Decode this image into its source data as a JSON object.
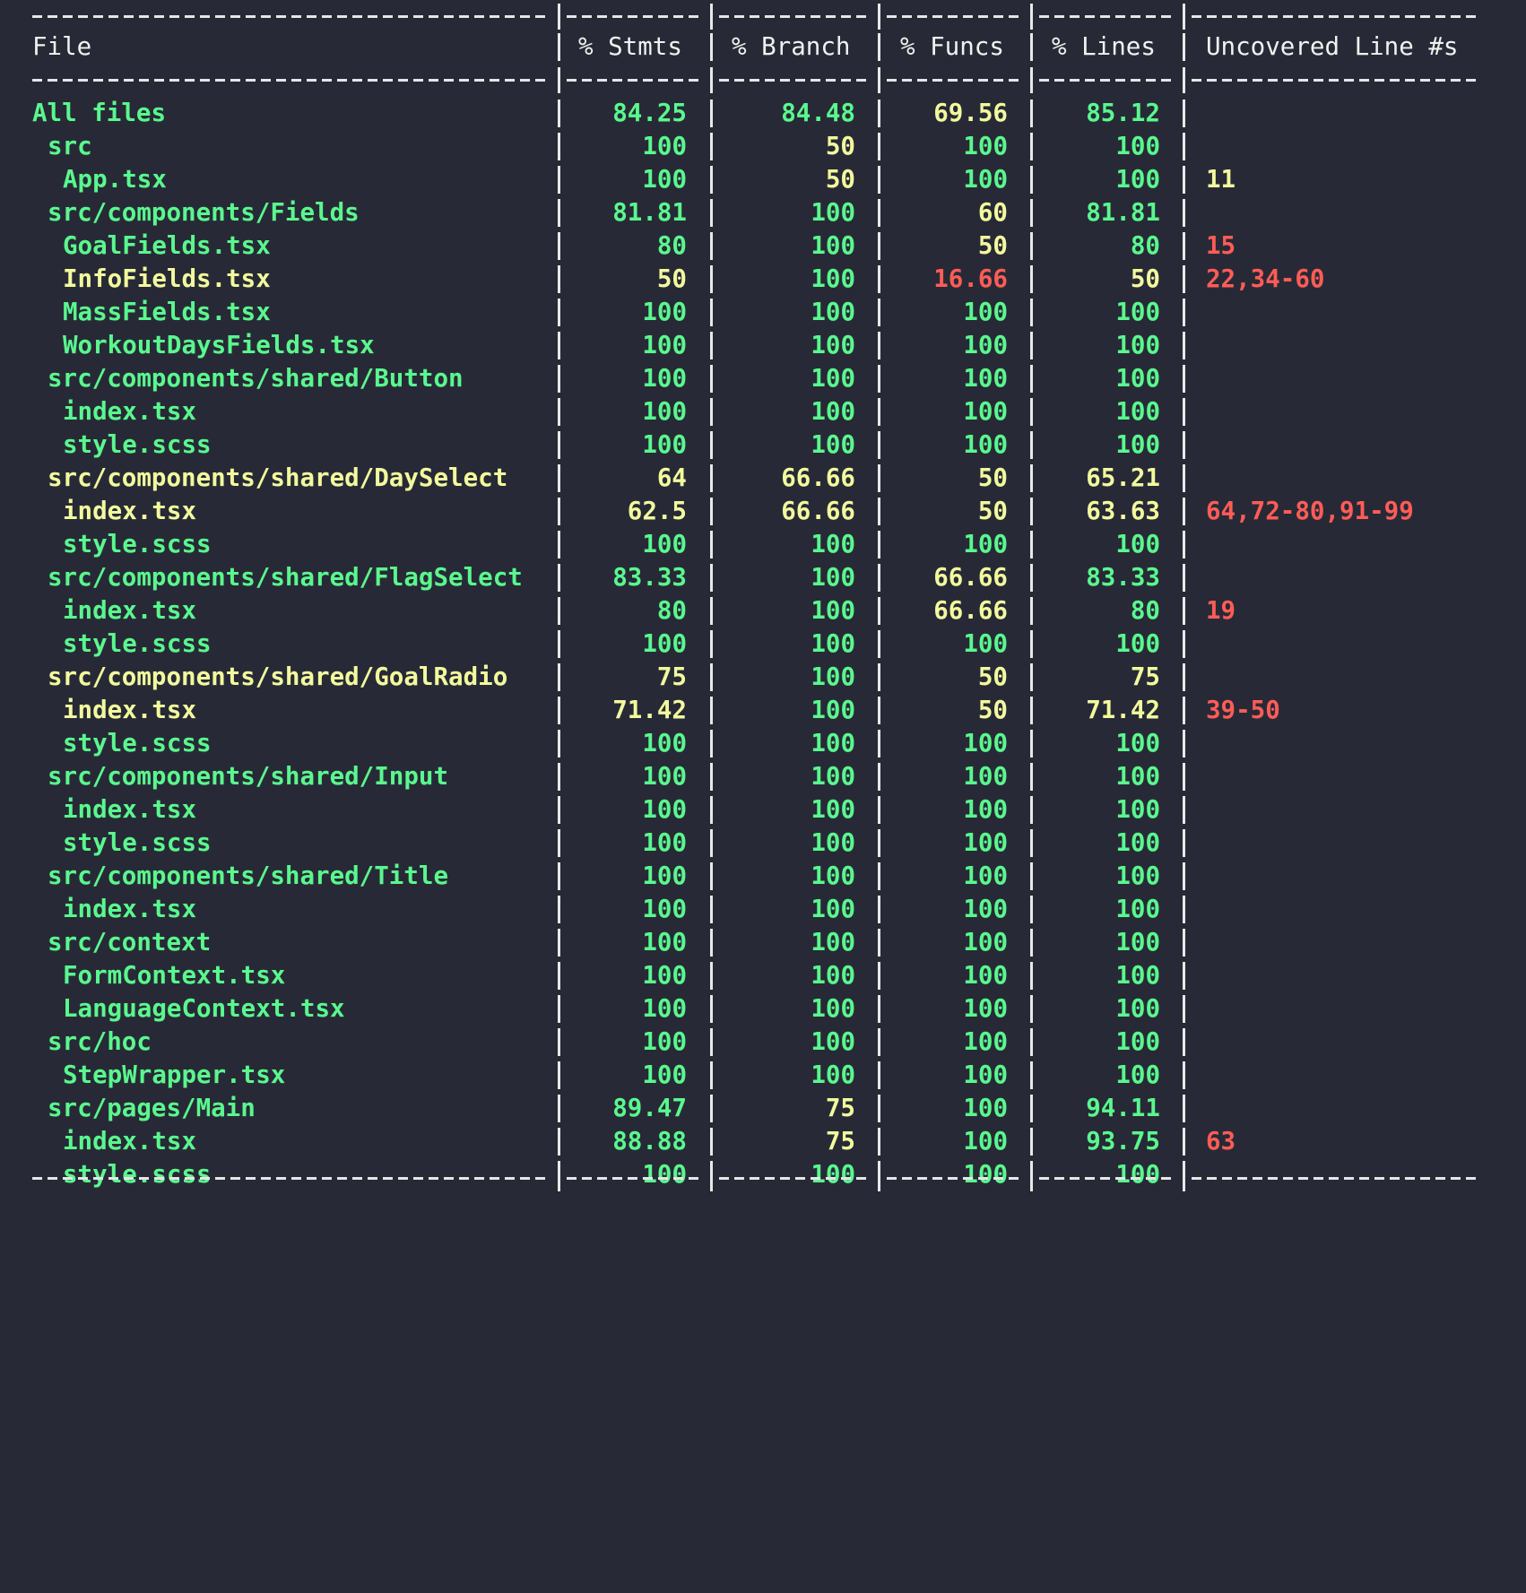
{
  "headers": {
    "file": "File",
    "stmts": "% Stmts",
    "branch": "% Branch",
    "funcs": "% Funcs",
    "lines": "% Lines",
    "uncovered": "Uncovered Line #s"
  },
  "colors": {
    "background": "#272a36",
    "high": "#5af78e",
    "medium": "#f3f99d",
    "low": "#ff5c57",
    "text": "#f1f1f0"
  },
  "rows": [
    {
      "file": "All files",
      "indent": 0,
      "file_color": "green",
      "stmts": "84.25",
      "stmts_color": "green",
      "branch": "84.48",
      "branch_color": "green",
      "funcs": "69.56",
      "funcs_color": "yellow",
      "lines": "85.12",
      "lines_color": "green",
      "uncovered": "",
      "uncovered_color": "red"
    },
    {
      "file": "src",
      "indent": 1,
      "file_color": "green",
      "stmts": "100",
      "stmts_color": "green",
      "branch": "50",
      "branch_color": "yellow",
      "funcs": "100",
      "funcs_color": "green",
      "lines": "100",
      "lines_color": "green",
      "uncovered": "",
      "uncovered_color": "red"
    },
    {
      "file": "App.tsx",
      "indent": 2,
      "file_color": "green",
      "stmts": "100",
      "stmts_color": "green",
      "branch": "50",
      "branch_color": "yellow",
      "funcs": "100",
      "funcs_color": "green",
      "lines": "100",
      "lines_color": "green",
      "uncovered": "11",
      "uncovered_color": "yellow"
    },
    {
      "file": "src/components/Fields",
      "indent": 1,
      "file_color": "green",
      "stmts": "81.81",
      "stmts_color": "green",
      "branch": "100",
      "branch_color": "green",
      "funcs": "60",
      "funcs_color": "yellow",
      "lines": "81.81",
      "lines_color": "green",
      "uncovered": "",
      "uncovered_color": "red"
    },
    {
      "file": "GoalFields.tsx",
      "indent": 2,
      "file_color": "green",
      "stmts": "80",
      "stmts_color": "green",
      "branch": "100",
      "branch_color": "green",
      "funcs": "50",
      "funcs_color": "yellow",
      "lines": "80",
      "lines_color": "green",
      "uncovered": "15",
      "uncovered_color": "red"
    },
    {
      "file": "InfoFields.tsx",
      "indent": 2,
      "file_color": "yellow",
      "stmts": "50",
      "stmts_color": "yellow",
      "branch": "100",
      "branch_color": "green",
      "funcs": "16.66",
      "funcs_color": "red",
      "lines": "50",
      "lines_color": "yellow",
      "uncovered": "22,34-60",
      "uncovered_color": "red"
    },
    {
      "file": "MassFields.tsx",
      "indent": 2,
      "file_color": "green",
      "stmts": "100",
      "stmts_color": "green",
      "branch": "100",
      "branch_color": "green",
      "funcs": "100",
      "funcs_color": "green",
      "lines": "100",
      "lines_color": "green",
      "uncovered": "",
      "uncovered_color": "red"
    },
    {
      "file": "WorkoutDaysFields.tsx",
      "indent": 2,
      "file_color": "green",
      "stmts": "100",
      "stmts_color": "green",
      "branch": "100",
      "branch_color": "green",
      "funcs": "100",
      "funcs_color": "green",
      "lines": "100",
      "lines_color": "green",
      "uncovered": "",
      "uncovered_color": "red"
    },
    {
      "file": "src/components/shared/Button",
      "indent": 1,
      "file_color": "green",
      "stmts": "100",
      "stmts_color": "green",
      "branch": "100",
      "branch_color": "green",
      "funcs": "100",
      "funcs_color": "green",
      "lines": "100",
      "lines_color": "green",
      "uncovered": "",
      "uncovered_color": "red"
    },
    {
      "file": "index.tsx",
      "indent": 2,
      "file_color": "green",
      "stmts": "100",
      "stmts_color": "green",
      "branch": "100",
      "branch_color": "green",
      "funcs": "100",
      "funcs_color": "green",
      "lines": "100",
      "lines_color": "green",
      "uncovered": "",
      "uncovered_color": "red"
    },
    {
      "file": "style.scss",
      "indent": 2,
      "file_color": "green",
      "stmts": "100",
      "stmts_color": "green",
      "branch": "100",
      "branch_color": "green",
      "funcs": "100",
      "funcs_color": "green",
      "lines": "100",
      "lines_color": "green",
      "uncovered": "",
      "uncovered_color": "red"
    },
    {
      "file": "src/components/shared/DaySelect",
      "indent": 1,
      "file_color": "yellow",
      "stmts": "64",
      "stmts_color": "yellow",
      "branch": "66.66",
      "branch_color": "yellow",
      "funcs": "50",
      "funcs_color": "yellow",
      "lines": "65.21",
      "lines_color": "yellow",
      "uncovered": "",
      "uncovered_color": "red"
    },
    {
      "file": "index.tsx",
      "indent": 2,
      "file_color": "yellow",
      "stmts": "62.5",
      "stmts_color": "yellow",
      "branch": "66.66",
      "branch_color": "yellow",
      "funcs": "50",
      "funcs_color": "yellow",
      "lines": "63.63",
      "lines_color": "yellow",
      "uncovered": "64,72-80,91-99",
      "uncovered_color": "red"
    },
    {
      "file": "style.scss",
      "indent": 2,
      "file_color": "green",
      "stmts": "100",
      "stmts_color": "green",
      "branch": "100",
      "branch_color": "green",
      "funcs": "100",
      "funcs_color": "green",
      "lines": "100",
      "lines_color": "green",
      "uncovered": "",
      "uncovered_color": "red"
    },
    {
      "file": "src/components/shared/FlagSelect",
      "indent": 1,
      "file_color": "green",
      "stmts": "83.33",
      "stmts_color": "green",
      "branch": "100",
      "branch_color": "green",
      "funcs": "66.66",
      "funcs_color": "yellow",
      "lines": "83.33",
      "lines_color": "green",
      "uncovered": "",
      "uncovered_color": "red"
    },
    {
      "file": "index.tsx",
      "indent": 2,
      "file_color": "green",
      "stmts": "80",
      "stmts_color": "green",
      "branch": "100",
      "branch_color": "green",
      "funcs": "66.66",
      "funcs_color": "yellow",
      "lines": "80",
      "lines_color": "green",
      "uncovered": "19",
      "uncovered_color": "red"
    },
    {
      "file": "style.scss",
      "indent": 2,
      "file_color": "green",
      "stmts": "100",
      "stmts_color": "green",
      "branch": "100",
      "branch_color": "green",
      "funcs": "100",
      "funcs_color": "green",
      "lines": "100",
      "lines_color": "green",
      "uncovered": "",
      "uncovered_color": "red"
    },
    {
      "file": "src/components/shared/GoalRadio",
      "indent": 1,
      "file_color": "yellow",
      "stmts": "75",
      "stmts_color": "yellow",
      "branch": "100",
      "branch_color": "green",
      "funcs": "50",
      "funcs_color": "yellow",
      "lines": "75",
      "lines_color": "yellow",
      "uncovered": "",
      "uncovered_color": "red"
    },
    {
      "file": "index.tsx",
      "indent": 2,
      "file_color": "yellow",
      "stmts": "71.42",
      "stmts_color": "yellow",
      "branch": "100",
      "branch_color": "green",
      "funcs": "50",
      "funcs_color": "yellow",
      "lines": "71.42",
      "lines_color": "yellow",
      "uncovered": "39-50",
      "uncovered_color": "red"
    },
    {
      "file": "style.scss",
      "indent": 2,
      "file_color": "green",
      "stmts": "100",
      "stmts_color": "green",
      "branch": "100",
      "branch_color": "green",
      "funcs": "100",
      "funcs_color": "green",
      "lines": "100",
      "lines_color": "green",
      "uncovered": "",
      "uncovered_color": "red"
    },
    {
      "file": "src/components/shared/Input",
      "indent": 1,
      "file_color": "green",
      "stmts": "100",
      "stmts_color": "green",
      "branch": "100",
      "branch_color": "green",
      "funcs": "100",
      "funcs_color": "green",
      "lines": "100",
      "lines_color": "green",
      "uncovered": "",
      "uncovered_color": "red"
    },
    {
      "file": "index.tsx",
      "indent": 2,
      "file_color": "green",
      "stmts": "100",
      "stmts_color": "green",
      "branch": "100",
      "branch_color": "green",
      "funcs": "100",
      "funcs_color": "green",
      "lines": "100",
      "lines_color": "green",
      "uncovered": "",
      "uncovered_color": "red"
    },
    {
      "file": "style.scss",
      "indent": 2,
      "file_color": "green",
      "stmts": "100",
      "stmts_color": "green",
      "branch": "100",
      "branch_color": "green",
      "funcs": "100",
      "funcs_color": "green",
      "lines": "100",
      "lines_color": "green",
      "uncovered": "",
      "uncovered_color": "red"
    },
    {
      "file": "src/components/shared/Title",
      "indent": 1,
      "file_color": "green",
      "stmts": "100",
      "stmts_color": "green",
      "branch": "100",
      "branch_color": "green",
      "funcs": "100",
      "funcs_color": "green",
      "lines": "100",
      "lines_color": "green",
      "uncovered": "",
      "uncovered_color": "red"
    },
    {
      "file": "index.tsx",
      "indent": 2,
      "file_color": "green",
      "stmts": "100",
      "stmts_color": "green",
      "branch": "100",
      "branch_color": "green",
      "funcs": "100",
      "funcs_color": "green",
      "lines": "100",
      "lines_color": "green",
      "uncovered": "",
      "uncovered_color": "red"
    },
    {
      "file": "src/context",
      "indent": 1,
      "file_color": "green",
      "stmts": "100",
      "stmts_color": "green",
      "branch": "100",
      "branch_color": "green",
      "funcs": "100",
      "funcs_color": "green",
      "lines": "100",
      "lines_color": "green",
      "uncovered": "",
      "uncovered_color": "red"
    },
    {
      "file": "FormContext.tsx",
      "indent": 2,
      "file_color": "green",
      "stmts": "100",
      "stmts_color": "green",
      "branch": "100",
      "branch_color": "green",
      "funcs": "100",
      "funcs_color": "green",
      "lines": "100",
      "lines_color": "green",
      "uncovered": "",
      "uncovered_color": "red"
    },
    {
      "file": "LanguageContext.tsx",
      "indent": 2,
      "file_color": "green",
      "stmts": "100",
      "stmts_color": "green",
      "branch": "100",
      "branch_color": "green",
      "funcs": "100",
      "funcs_color": "green",
      "lines": "100",
      "lines_color": "green",
      "uncovered": "",
      "uncovered_color": "red"
    },
    {
      "file": "src/hoc",
      "indent": 1,
      "file_color": "green",
      "stmts": "100",
      "stmts_color": "green",
      "branch": "100",
      "branch_color": "green",
      "funcs": "100",
      "funcs_color": "green",
      "lines": "100",
      "lines_color": "green",
      "uncovered": "",
      "uncovered_color": "red"
    },
    {
      "file": "StepWrapper.tsx",
      "indent": 2,
      "file_color": "green",
      "stmts": "100",
      "stmts_color": "green",
      "branch": "100",
      "branch_color": "green",
      "funcs": "100",
      "funcs_color": "green",
      "lines": "100",
      "lines_color": "green",
      "uncovered": "",
      "uncovered_color": "red"
    },
    {
      "file": "src/pages/Main",
      "indent": 1,
      "file_color": "green",
      "stmts": "89.47",
      "stmts_color": "green",
      "branch": "75",
      "branch_color": "yellow",
      "funcs": "100",
      "funcs_color": "green",
      "lines": "94.11",
      "lines_color": "green",
      "uncovered": "",
      "uncovered_color": "red"
    },
    {
      "file": "index.tsx",
      "indent": 2,
      "file_color": "green",
      "stmts": "88.88",
      "stmts_color": "green",
      "branch": "75",
      "branch_color": "yellow",
      "funcs": "100",
      "funcs_color": "green",
      "lines": "93.75",
      "lines_color": "green",
      "uncovered": "63",
      "uncovered_color": "red"
    },
    {
      "file": "style.scss",
      "indent": 2,
      "file_color": "green",
      "stmts": "100",
      "stmts_color": "green",
      "branch": "100",
      "branch_color": "green",
      "funcs": "100",
      "funcs_color": "green",
      "lines": "100",
      "lines_color": "green",
      "uncovered": "",
      "uncovered_color": "red"
    }
  ]
}
